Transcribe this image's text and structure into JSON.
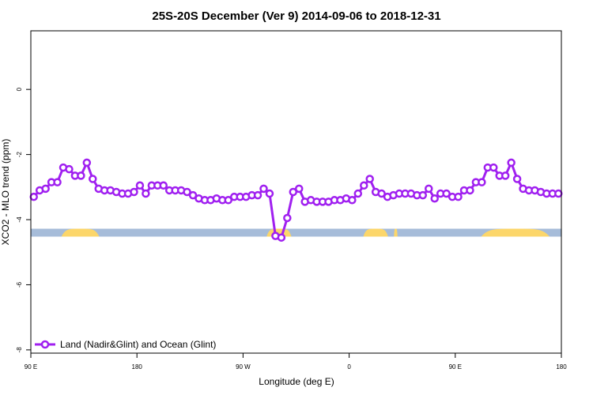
{
  "chart_data": {
    "type": "line",
    "title": "25S-20S December (Ver 9)   2014-09-06 to 2018-12-31",
    "xlabel": "Longitude (deg E)",
    "ylabel": "XCO2 - MLO trend (ppm)",
    "xlim": [
      90,
      540
    ],
    "ylim": [
      -8.1,
      1.8
    ],
    "x_ticks": [
      {
        "value": 90,
        "label": "90 E"
      },
      {
        "value": 180,
        "label": "180"
      },
      {
        "value": 270,
        "label": "90 W"
      },
      {
        "value": 360,
        "label": "0"
      },
      {
        "value": 450,
        "label": "90 E"
      },
      {
        "value": 540,
        "label": "180"
      }
    ],
    "y_ticks": [
      {
        "value": 0,
        "label": "0"
      },
      {
        "value": -2,
        "label": "-2"
      },
      {
        "value": -4,
        "label": "-4"
      },
      {
        "value": -6,
        "label": "-6"
      },
      {
        "value": -8,
        "label": "-8"
      }
    ],
    "grid": false,
    "legend_position": "bottom-left",
    "series": [
      {
        "name": "Land (Nadir&Glint) and Ocean (Glint)",
        "color": "#a020f0",
        "marker": "open-circle",
        "x": [
          92.5,
          97.5,
          102.5,
          107.5,
          112.5,
          117.5,
          122.5,
          127.5,
          132.5,
          137.5,
          142.5,
          147.5,
          152.5,
          157.5,
          162.5,
          167.5,
          172.5,
          177.5,
          182.5,
          187.5,
          192.5,
          197.5,
          202.5,
          207.5,
          212.5,
          217.5,
          222.5,
          227.5,
          232.5,
          237.5,
          242.5,
          247.5,
          252.5,
          257.5,
          262.5,
          267.5,
          272.5,
          277.5,
          282.5,
          287.5,
          292.5,
          297.5,
          302.5,
          307.5,
          312.5,
          317.5,
          322.5,
          327.5,
          332.5,
          337.5,
          342.5,
          347.5,
          352.5,
          357.5,
          362.5,
          367.5,
          372.5,
          377.5,
          382.5,
          387.5,
          392.5,
          397.5,
          402.5,
          407.5,
          412.5,
          417.5,
          422.5,
          427.5,
          432.5,
          437.5,
          442.5,
          447.5,
          452.5,
          457.5,
          462.5,
          467.5,
          472.5,
          477.5,
          482.5,
          487.5,
          492.5,
          497.5,
          502.5,
          507.5,
          512.5,
          517.5,
          522.5,
          527.5,
          532.5,
          537.5
        ],
        "y": [
          -3.3,
          -3.1,
          -3.05,
          -2.85,
          -2.85,
          -2.4,
          -2.45,
          -2.65,
          -2.65,
          -2.25,
          -2.75,
          -3.05,
          -3.1,
          -3.1,
          -3.15,
          -3.2,
          -3.2,
          -3.15,
          -2.95,
          -3.2,
          -2.95,
          -2.95,
          -2.95,
          -3.1,
          -3.1,
          -3.1,
          -3.15,
          -3.25,
          -3.35,
          -3.4,
          -3.4,
          -3.35,
          -3.4,
          -3.4,
          -3.3,
          -3.3,
          -3.3,
          -3.25,
          -3.25,
          -3.05,
          -3.2,
          -4.5,
          -4.55,
          -3.95,
          -3.15,
          -3.05,
          -3.45,
          -3.4,
          -3.45,
          -3.45,
          -3.45,
          -3.4,
          -3.4,
          -3.35,
          -3.4,
          -3.2,
          -2.95,
          -2.75,
          -3.15,
          -3.2,
          -3.3,
          -3.25,
          -3.2,
          -3.2,
          -3.2,
          -3.25,
          -3.25,
          -3.05,
          -3.35,
          -3.2,
          -3.2,
          -3.3,
          -3.3,
          -3.1,
          -3.1,
          -2.85,
          -2.85,
          -2.4,
          -2.4,
          -2.65,
          -2.65,
          -2.25,
          -2.75,
          -3.05,
          -3.1,
          -3.1,
          -3.15,
          -3.2,
          -3.2,
          -3.2
        ]
      }
    ],
    "land_ocean_band": {
      "y_center": -4.4,
      "ocean_color": "#a6bcd9",
      "land_color": "#fcd66a",
      "land_segments": [
        [
          116,
          148
        ],
        [
          290,
          311
        ],
        [
          372,
          393
        ],
        [
          398,
          401
        ],
        [
          472,
          530
        ]
      ]
    }
  }
}
